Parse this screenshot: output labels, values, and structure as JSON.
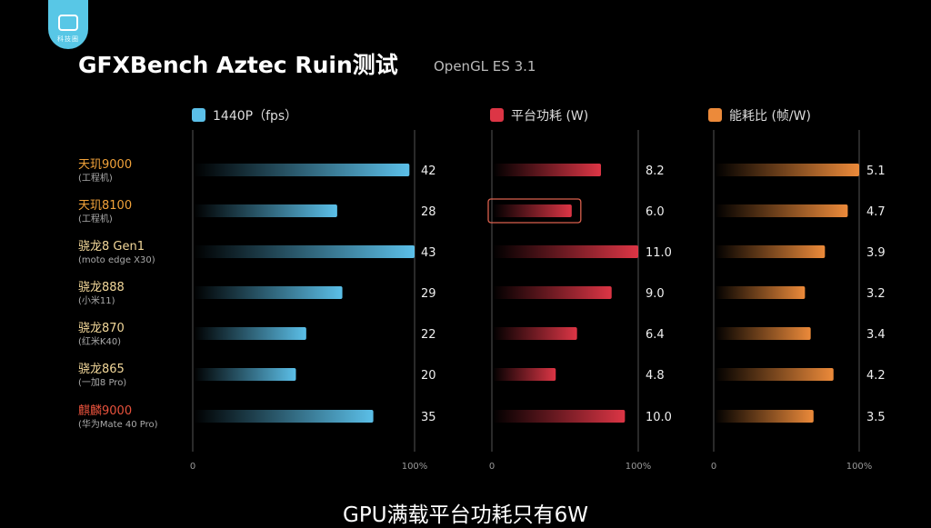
{
  "logo": {
    "text": "科技圈"
  },
  "header": {
    "title": "GFXBench Aztec Ruin测试",
    "subtitle": "OpenGL ES 3.1"
  },
  "caption": "GPU满载平台功耗只有6W",
  "colors": {
    "fps": "#5bbfe8",
    "power": "#dc3545",
    "efficiency": "#ec8a3a",
    "name_orange": "#f1a23a",
    "name_cream": "#f3d89a",
    "name_red": "#e8523c",
    "highlight_box": "#d9604d"
  },
  "chart_data": {
    "type": "bar",
    "categories": [
      {
        "name": "天玑9000",
        "sub": "(工程机)",
        "color": "name_orange"
      },
      {
        "name": "天玑8100",
        "sub": "(工程机)",
        "color": "name_orange"
      },
      {
        "name": "骁龙8 Gen1",
        "sub": "(moto edge X30)",
        "color": "name_cream"
      },
      {
        "name": "骁龙888",
        "sub": "(小米11)",
        "color": "name_cream"
      },
      {
        "name": "骁龙870",
        "sub": "(红米K40)",
        "color": "name_cream"
      },
      {
        "name": "骁龙865",
        "sub": "(一加8 Pro)",
        "color": "name_cream"
      },
      {
        "name": "麒麟9000",
        "sub": "(华为Mate 40 Pro)",
        "color": "name_red"
      }
    ],
    "series": [
      {
        "name": "1440P（fps）",
        "color_key": "fps",
        "values": [
          42,
          28,
          43,
          29,
          22,
          20,
          35
        ],
        "labels": [
          "42",
          "28",
          "43",
          "29",
          "22",
          "20",
          "35"
        ],
        "xlim": [
          0,
          43
        ],
        "tick_labels": [
          "0",
          "100%"
        ]
      },
      {
        "name": "平台功耗 (W)",
        "color_key": "power",
        "values": [
          8.2,
          6.0,
          11.0,
          9.0,
          6.4,
          4.8,
          10.0
        ],
        "labels": [
          "8.2",
          "6.0",
          "11.0",
          "9.0",
          "6.4",
          "4.8",
          "10.0"
        ],
        "xlim": [
          0,
          11.0
        ],
        "tick_labels": [
          "0",
          "100%"
        ],
        "highlight_index": 1
      },
      {
        "name": "能耗比 (帧/W)",
        "color_key": "efficiency",
        "values": [
          5.1,
          4.7,
          3.9,
          3.2,
          3.4,
          4.2,
          3.5
        ],
        "labels": [
          "5.1",
          "4.7",
          "3.9",
          "3.2",
          "3.4",
          "4.2",
          "3.5"
        ],
        "xlim": [
          0,
          5.1
        ],
        "tick_labels": [
          "0",
          "100%"
        ]
      }
    ]
  }
}
